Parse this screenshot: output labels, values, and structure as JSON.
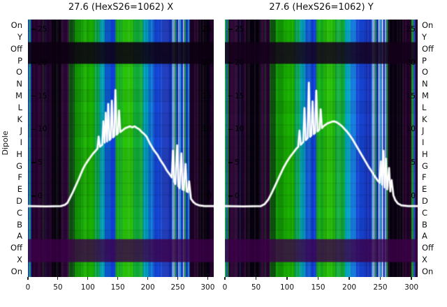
{
  "figure": {
    "ylabel": "Dipole",
    "panels": [
      {
        "title": "27.6 (HexS26=1062) X"
      },
      {
        "title": "27.6 (HexS26=1062) Y"
      }
    ],
    "row_labels": [
      "On",
      "Y",
      "Off",
      "P",
      "O",
      "N",
      "M",
      "L",
      "K",
      "J",
      "I",
      "H",
      "G",
      "F",
      "E",
      "D",
      "C",
      "B",
      "A",
      "Off",
      "X",
      "On"
    ],
    "inner_ytick_values": [
      25,
      20,
      15,
      10,
      5,
      0
    ],
    "xtick_values": [
      0,
      50,
      100,
      150,
      200,
      250,
      300
    ]
  },
  "chart_data": [
    {
      "type": "heatmap",
      "title": "27.6 (HexS26=1062) X",
      "xlim": [
        0,
        310
      ],
      "inner_yticks": [
        25,
        20,
        15,
        10,
        5,
        0
      ],
      "xticks": [
        0,
        50,
        100,
        150,
        200,
        250,
        300
      ],
      "row_categories": [
        "On",
        "Y",
        "Off",
        "P",
        "O",
        "N",
        "M",
        "L",
        "K",
        "J",
        "I",
        "H",
        "G",
        "F",
        "E",
        "D",
        "C",
        "B",
        "A",
        "Off",
        "X",
        "On"
      ],
      "columns": [
        [
          0,
          2,
          "#2846e0"
        ],
        [
          2,
          4,
          "#18bc30"
        ],
        [
          4,
          6,
          "#0f36d0"
        ],
        [
          6,
          24,
          "#270030"
        ],
        [
          24,
          40,
          "#1f0028"
        ],
        [
          40,
          55,
          "#08000e"
        ],
        [
          55,
          68,
          "#2b0033"
        ],
        [
          68,
          78,
          "#0e5212"
        ],
        [
          78,
          92,
          "#139e06"
        ],
        [
          92,
          111,
          "#1ab400"
        ],
        [
          111,
          120,
          "#0cac52"
        ],
        [
          120,
          128,
          "#00a0b4"
        ],
        [
          128,
          138,
          "#0e5ed6"
        ],
        [
          138,
          146,
          "#1240e0"
        ],
        [
          146,
          158,
          "#17b01e"
        ],
        [
          158,
          176,
          "#27c409"
        ],
        [
          176,
          192,
          "#12b03a"
        ],
        [
          192,
          201,
          "#00a4c4"
        ],
        [
          201,
          210,
          "#0e78e0"
        ],
        [
          210,
          224,
          "#1648dc"
        ],
        [
          224,
          239,
          "#1634bc"
        ],
        [
          239,
          270,
          "#1638c0"
        ],
        [
          270,
          286,
          "#1f0027"
        ],
        [
          286,
          303,
          "#090010"
        ],
        [
          303,
          310,
          "#23002b"
        ]
      ],
      "stripes": [
        [
          25,
          1,
          "#174a1e"
        ],
        [
          31,
          1,
          "#101c52"
        ],
        [
          60,
          1,
          "#141433"
        ],
        [
          240.5,
          1.6,
          "#7fd4ff"
        ],
        [
          243,
          1.4,
          "#eef9ff"
        ],
        [
          245.5,
          1.8,
          "#2bb824"
        ],
        [
          248.5,
          1.6,
          "#0a2eb0"
        ],
        [
          251,
          1.4,
          "#e8f6ff"
        ],
        [
          253.5,
          1.8,
          "#28b8e8"
        ],
        [
          256.5,
          1.6,
          "#1238c8"
        ],
        [
          259,
          1.4,
          "#ffffff"
        ],
        [
          261.5,
          1.8,
          "#20b02c"
        ],
        [
          264.5,
          1.6,
          "#0f38c0"
        ],
        [
          267,
          1.6,
          "#27aede"
        ]
      ],
      "row_bands": [
        [
          0.088,
          0.172,
          "#0c0011",
          0.88
        ],
        [
          0.853,
          0.942,
          "#3c0049",
          0.8
        ]
      ],
      "line": {
        "name": "profile-x",
        "color": "#ffffff",
        "points": [
          [
            0,
            -1.5
          ],
          [
            30,
            -1.55
          ],
          [
            55,
            -1.5
          ],
          [
            62,
            -1.3
          ],
          [
            66,
            -1.0
          ],
          [
            70,
            -0.3
          ],
          [
            75,
            0.6
          ],
          [
            80,
            1.6
          ],
          [
            85,
            2.6
          ],
          [
            91,
            3.9
          ],
          [
            95,
            4.6
          ],
          [
            100,
            5.3
          ],
          [
            104,
            5.8
          ],
          [
            108,
            6.3
          ],
          [
            112,
            6.7
          ],
          [
            116,
            7.1
          ],
          [
            118,
            8.9
          ],
          [
            120,
            7.4
          ],
          [
            124,
            7.7
          ],
          [
            126,
            11.2
          ],
          [
            128,
            8.0
          ],
          [
            130,
            12.5
          ],
          [
            132,
            8.2
          ],
          [
            134,
            13.8
          ],
          [
            136,
            8.4
          ],
          [
            138,
            8.6
          ],
          [
            140,
            14.3
          ],
          [
            142,
            8.8
          ],
          [
            144,
            9.0
          ],
          [
            146,
            15.9
          ],
          [
            148,
            9.2
          ],
          [
            150,
            9.4
          ],
          [
            152,
            12.8
          ],
          [
            154,
            9.6
          ],
          [
            157,
            9.8
          ],
          [
            160,
            10.0
          ],
          [
            163,
            10.2
          ],
          [
            166,
            10.3
          ],
          [
            170,
            10.45
          ],
          [
            174,
            10.3
          ],
          [
            178,
            10.45
          ],
          [
            182,
            10.2
          ],
          [
            186,
            10.0
          ],
          [
            190,
            9.6
          ],
          [
            194,
            9.3
          ],
          [
            198,
            8.9
          ],
          [
            204,
            7.8
          ],
          [
            210,
            6.9
          ],
          [
            216,
            6.2
          ],
          [
            221,
            5.4
          ],
          [
            227,
            4.6
          ],
          [
            232,
            3.8
          ],
          [
            237,
            3.2
          ],
          [
            240,
            2.8
          ],
          [
            242,
            6.8
          ],
          [
            244,
            2.2
          ],
          [
            246,
            1.8
          ],
          [
            249,
            7.6
          ],
          [
            251,
            1.5
          ],
          [
            253,
            1.2
          ],
          [
            256,
            6.4
          ],
          [
            258,
            1.0
          ],
          [
            260,
            0.9
          ],
          [
            263,
            4.8
          ],
          [
            265,
            0.7
          ],
          [
            267,
            0.6
          ],
          [
            269,
            2.2
          ],
          [
            272,
            -0.4
          ],
          [
            276,
            -0.9
          ],
          [
            280,
            -1.2
          ],
          [
            286,
            -1.4
          ],
          [
            295,
            -1.5
          ],
          [
            310,
            -1.5
          ]
        ]
      }
    },
    {
      "type": "heatmap",
      "title": "27.6 (HexS26=1062) Y",
      "xlim": [
        0,
        310
      ],
      "inner_yticks": [
        25,
        20,
        15,
        10,
        5,
        0
      ],
      "xticks": [
        0,
        50,
        100,
        150,
        200,
        250,
        300
      ],
      "row_categories": [
        "On",
        "Y",
        "Off",
        "P",
        "O",
        "N",
        "M",
        "L",
        "K",
        "J",
        "I",
        "H",
        "G",
        "F",
        "E",
        "D",
        "C",
        "B",
        "A",
        "Off",
        "X",
        "On"
      ],
      "columns": [
        [
          0,
          2,
          "#18b82c"
        ],
        [
          2,
          4,
          "#2142dc"
        ],
        [
          4,
          6,
          "#17a428"
        ],
        [
          6,
          22,
          "#260030"
        ],
        [
          22,
          35,
          "#1e0027"
        ],
        [
          35,
          58,
          "#080010"
        ],
        [
          58,
          72,
          "#2b0033"
        ],
        [
          72,
          82,
          "#0f5a10"
        ],
        [
          82,
          96,
          "#14a406"
        ],
        [
          96,
          112,
          "#1ab400"
        ],
        [
          112,
          121,
          "#0aa85c"
        ],
        [
          121,
          129,
          "#00a0b8"
        ],
        [
          129,
          139,
          "#0e5cd8"
        ],
        [
          139,
          147,
          "#1240e0"
        ],
        [
          147,
          159,
          "#18b21c"
        ],
        [
          159,
          177,
          "#27c409"
        ],
        [
          177,
          193,
          "#12b03a"
        ],
        [
          193,
          202,
          "#00a4c4"
        ],
        [
          202,
          211,
          "#0e78e0"
        ],
        [
          211,
          224,
          "#1648dc"
        ],
        [
          224,
          235,
          "#1634bc"
        ],
        [
          235,
          262,
          "#1638c0"
        ],
        [
          262,
          286,
          "#0a0012"
        ],
        [
          286,
          300,
          "#220029"
        ],
        [
          300,
          303,
          "#1bb224"
        ],
        [
          303,
          306,
          "#1a44d0"
        ],
        [
          306,
          310,
          "#1d0026"
        ]
      ],
      "stripes": [
        [
          24,
          1,
          "#13406e"
        ],
        [
          64,
          1,
          "#14501c"
        ],
        [
          236.5,
          1.6,
          "#7fd4ff"
        ],
        [
          239,
          1.4,
          "#ffffff"
        ],
        [
          241.5,
          1.8,
          "#2bb824"
        ],
        [
          244.5,
          1.6,
          "#0a2eb0"
        ],
        [
          247,
          1.6,
          "#eef9ff"
        ],
        [
          249.5,
          1.8,
          "#28b8e8"
        ],
        [
          252.5,
          1.8,
          "#ffffff"
        ],
        [
          255,
          1.6,
          "#1238c8"
        ],
        [
          257.5,
          1.4,
          "#f4fbff"
        ],
        [
          260,
          1.8,
          "#20b02c"
        ]
      ],
      "row_bands": [
        [
          0.088,
          0.172,
          "#14001a",
          0.85
        ],
        [
          0.853,
          0.942,
          "#3c0049",
          0.8
        ]
      ],
      "line": {
        "name": "profile-y",
        "color": "#ffffff",
        "points": [
          [
            0,
            -1.5
          ],
          [
            30,
            -1.55
          ],
          [
            58,
            -1.5
          ],
          [
            64,
            -1.2
          ],
          [
            70,
            -0.5
          ],
          [
            76,
            0.6
          ],
          [
            82,
            1.8
          ],
          [
            88,
            3.0
          ],
          [
            94,
            4.2
          ],
          [
            100,
            5.2
          ],
          [
            105,
            5.9
          ],
          [
            110,
            6.5
          ],
          [
            114,
            7.0
          ],
          [
            118,
            7.4
          ],
          [
            120,
            9.8
          ],
          [
            122,
            7.7
          ],
          [
            126,
            8.1
          ],
          [
            128,
            13.2
          ],
          [
            130,
            8.4
          ],
          [
            133,
            8.7
          ],
          [
            135,
            17.0
          ],
          [
            137,
            8.9
          ],
          [
            139,
            9.1
          ],
          [
            141,
            14.2
          ],
          [
            143,
            9.3
          ],
          [
            145,
            9.5
          ],
          [
            147,
            15.8
          ],
          [
            149,
            9.7
          ],
          [
            152,
            10.0
          ],
          [
            154,
            13.0
          ],
          [
            156,
            10.2
          ],
          [
            159,
            10.5
          ],
          [
            162,
            10.7
          ],
          [
            165,
            10.9
          ],
          [
            168,
            11.0
          ],
          [
            172,
            11.15
          ],
          [
            176,
            11.2
          ],
          [
            180,
            11.05
          ],
          [
            184,
            10.8
          ],
          [
            188,
            10.5
          ],
          [
            192,
            10.1
          ],
          [
            196,
            9.7
          ],
          [
            201,
            9.1
          ],
          [
            206,
            8.4
          ],
          [
            211,
            7.6
          ],
          [
            216,
            6.8
          ],
          [
            221,
            6.0
          ],
          [
            226,
            5.2
          ],
          [
            231,
            4.4
          ],
          [
            236,
            3.7
          ],
          [
            240,
            3.1
          ],
          [
            243,
            2.7
          ],
          [
            246,
            2.3
          ],
          [
            249,
            2.0
          ],
          [
            251,
            5.2
          ],
          [
            253,
            1.7
          ],
          [
            255,
            6.8
          ],
          [
            257,
            1.3
          ],
          [
            259,
            5.6
          ],
          [
            261,
            1.0
          ],
          [
            264,
            4.2
          ],
          [
            266,
            0.7
          ],
          [
            268,
            2.4
          ],
          [
            271,
            0.1
          ],
          [
            274,
            -0.6
          ],
          [
            278,
            -1.1
          ],
          [
            284,
            -1.4
          ],
          [
            295,
            -1.5
          ],
          [
            310,
            -1.5
          ]
        ]
      }
    }
  ]
}
